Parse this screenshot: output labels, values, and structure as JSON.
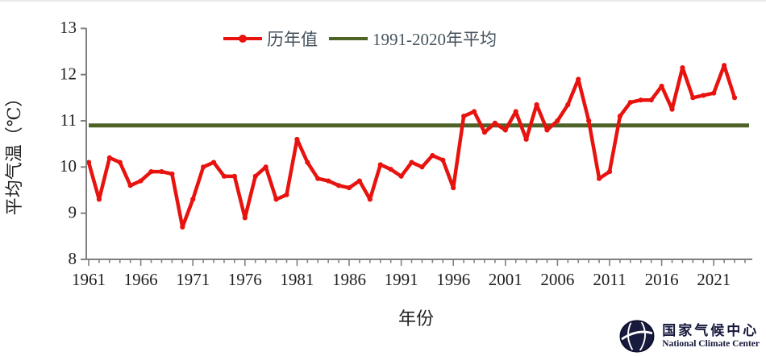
{
  "chart_data": {
    "type": "line",
    "title": "",
    "xlabel": "年份",
    "ylabel": "平均气温（℃）",
    "ylim": [
      8,
      13
    ],
    "y_ticks": [
      8,
      9,
      10,
      11,
      12,
      13
    ],
    "x_tick_labels": [
      1961,
      1966,
      1971,
      1976,
      1981,
      1986,
      1991,
      1996,
      2001,
      2006,
      2011,
      2016,
      2021
    ],
    "x_minor_tick_start": 1961,
    "x_minor_tick_end": 2024,
    "grid": false,
    "legend_position": "top-center",
    "series": [
      {
        "name": "历年值",
        "type": "line_with_markers",
        "color": "#e8120e",
        "years": [
          1961,
          1962,
          1963,
          1964,
          1965,
          1966,
          1967,
          1968,
          1969,
          1970,
          1971,
          1972,
          1973,
          1974,
          1975,
          1976,
          1977,
          1978,
          1979,
          1980,
          1981,
          1982,
          1983,
          1984,
          1985,
          1986,
          1987,
          1988,
          1989,
          1990,
          1991,
          1992,
          1993,
          1994,
          1995,
          1996,
          1997,
          1998,
          1999,
          2000,
          2001,
          2002,
          2003,
          2004,
          2005,
          2006,
          2007,
          2008,
          2009,
          2010,
          2011,
          2012,
          2013,
          2014,
          2015,
          2016,
          2017,
          2018,
          2019,
          2020,
          2021,
          2022,
          2023
        ],
        "values": [
          10.1,
          9.3,
          10.2,
          10.1,
          9.6,
          9.7,
          9.9,
          9.9,
          9.85,
          8.7,
          9.3,
          10.0,
          10.1,
          9.8,
          9.8,
          8.9,
          9.8,
          10.0,
          9.3,
          9.4,
          10.6,
          10.1,
          9.75,
          9.7,
          9.6,
          9.55,
          9.7,
          9.3,
          10.05,
          9.95,
          9.8,
          10.1,
          10.0,
          10.25,
          10.15,
          9.55,
          11.1,
          11.2,
          10.75,
          10.95,
          10.8,
          11.2,
          10.6,
          11.35,
          10.8,
          11.0,
          11.35,
          11.9,
          11.0,
          9.75,
          9.9,
          11.1,
          11.4,
          11.45,
          11.45,
          11.75,
          11.25,
          12.15,
          11.5,
          11.55,
          11.6,
          12.2,
          11.5
        ]
      },
      {
        "name": "1991-2020年平均",
        "type": "horizontal_reference_line",
        "color": "#4f6228",
        "value": 10.9
      }
    ]
  },
  "branding": {
    "logo_icon": "globe-emblem",
    "name_zh": "国家气候中心",
    "name_en": "National Climate Center"
  },
  "colors": {
    "annual_line": "#e8120e",
    "average_line": "#4f6228",
    "axis": "#7f7f7f",
    "tick_text": "#1f1f1f",
    "legend_text": "#44525c",
    "brand_text": "#15173b"
  }
}
